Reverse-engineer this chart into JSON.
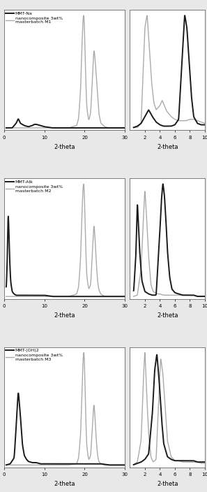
{
  "panels": [
    {
      "clay_label": "MMT-Na",
      "nano_label": "nanocomposite 3wt%\nmasterbatch M1",
      "clay_color": "#1a1a1a",
      "nano_color": "#aaaaaa",
      "clay_lw": 1.4,
      "nano_lw": 1.0,
      "clay_wide": {
        "x": [
          0.5,
          1.0,
          2.0,
          3.0,
          3.5,
          4.0,
          5.0,
          6.0,
          7.0,
          7.5,
          8.0,
          9.0,
          10.0,
          12.0,
          14.0,
          16.0,
          18.0,
          20.0,
          22.0,
          24.0,
          26.0,
          28.0,
          30.0
        ],
        "y": [
          0.02,
          0.02,
          0.02,
          0.06,
          0.1,
          0.06,
          0.04,
          0.03,
          0.04,
          0.05,
          0.05,
          0.04,
          0.03,
          0.02,
          0.02,
          0.02,
          0.02,
          0.02,
          0.02,
          0.02,
          0.02,
          0.02,
          0.02
        ]
      },
      "nano_wide": {
        "x": [
          0.5,
          2.0,
          4.0,
          6.0,
          8.0,
          10.0,
          12.0,
          14.0,
          16.0,
          18.0,
          18.5,
          19.0,
          19.3,
          19.6,
          19.8,
          20.0,
          20.2,
          20.5,
          21.0,
          21.5,
          22.0,
          22.3,
          22.6,
          22.9,
          23.2,
          23.5,
          24.0,
          25.0,
          26.0,
          27.0,
          28.0,
          29.0,
          30.0
        ],
        "y": [
          0.02,
          0.02,
          0.02,
          0.02,
          0.02,
          0.02,
          0.02,
          0.02,
          0.02,
          0.04,
          0.1,
          0.35,
          0.7,
          0.95,
          1.0,
          0.8,
          0.5,
          0.2,
          0.08,
          0.15,
          0.5,
          0.7,
          0.6,
          0.45,
          0.3,
          0.15,
          0.06,
          0.03,
          0.02,
          0.02,
          0.02,
          0.02,
          0.02
        ]
      },
      "clay_zoom": {
        "x": [
          0.5,
          1.0,
          1.5,
          2.0,
          2.5,
          3.0,
          3.5,
          4.0,
          4.5,
          5.0,
          5.5,
          6.0,
          6.5,
          7.0,
          7.3,
          7.6,
          7.9,
          8.2,
          8.5,
          9.0,
          9.5,
          10.0
        ],
        "y": [
          0.02,
          0.03,
          0.05,
          0.1,
          0.15,
          0.1,
          0.06,
          0.04,
          0.03,
          0.03,
          0.03,
          0.04,
          0.08,
          0.55,
          0.85,
          0.75,
          0.5,
          0.25,
          0.1,
          0.05,
          0.04,
          0.04
        ]
      },
      "nano_zoom": {
        "x": [
          0.5,
          1.0,
          1.5,
          2.0,
          2.3,
          2.6,
          2.9,
          3.2,
          3.5,
          4.0,
          4.3,
          4.6,
          4.9,
          5.2,
          5.5,
          6.0,
          6.5,
          7.0,
          7.5,
          8.0,
          8.5,
          9.0,
          9.5,
          10.0
        ],
        "y": [
          0.02,
          0.02,
          0.05,
          0.75,
          0.85,
          0.6,
          0.35,
          0.2,
          0.15,
          0.18,
          0.22,
          0.18,
          0.14,
          0.12,
          0.1,
          0.08,
          0.07,
          0.07,
          0.07,
          0.08,
          0.08,
          0.07,
          0.06,
          0.05
        ]
      }
    },
    {
      "clay_label": "MMT-Alk",
      "nano_label": "nanocomposite 3wt%\nmasterbatch M2",
      "clay_color": "#1a1a1a",
      "nano_color": "#aaaaaa",
      "clay_lw": 1.4,
      "nano_lw": 1.0,
      "clay_wide": {
        "x": [
          0.5,
          0.8,
          1.0,
          1.3,
          1.6,
          2.0,
          2.5,
          3.0,
          4.0,
          5.0,
          6.0,
          7.0,
          8.0,
          9.0,
          10.0,
          12.0,
          14.0,
          16.0,
          18.0,
          20.0,
          22.0,
          24.0,
          26.0,
          28.0,
          30.0
        ],
        "y": [
          0.05,
          0.35,
          0.8,
          0.4,
          0.15,
          0.06,
          0.04,
          0.03,
          0.03,
          0.03,
          0.03,
          0.03,
          0.03,
          0.03,
          0.03,
          0.02,
          0.02,
          0.02,
          0.02,
          0.02,
          0.02,
          0.02,
          0.02,
          0.02,
          0.02
        ]
      },
      "nano_wide": {
        "x": [
          0.5,
          2.0,
          4.0,
          6.0,
          8.0,
          10.0,
          12.0,
          14.0,
          16.0,
          18.0,
          18.5,
          19.0,
          19.3,
          19.6,
          19.8,
          20.0,
          20.2,
          20.5,
          21.0,
          21.5,
          22.0,
          22.3,
          22.6,
          22.9,
          23.2,
          23.5,
          24.0,
          25.0,
          26.0,
          27.0,
          28.0,
          29.0,
          30.0
        ],
        "y": [
          0.02,
          0.02,
          0.02,
          0.02,
          0.02,
          0.02,
          0.02,
          0.02,
          0.02,
          0.04,
          0.1,
          0.35,
          0.7,
          0.95,
          1.0,
          0.8,
          0.5,
          0.2,
          0.08,
          0.12,
          0.45,
          0.65,
          0.5,
          0.3,
          0.15,
          0.08,
          0.04,
          0.02,
          0.02,
          0.02,
          0.02,
          0.02,
          0.02
        ]
      },
      "clay_zoom": {
        "x": [
          0.5,
          0.8,
          1.0,
          1.3,
          1.6,
          2.0,
          2.5,
          3.0,
          3.5,
          4.0,
          4.2,
          4.4,
          4.6,
          4.8,
          5.0,
          5.3,
          5.6,
          6.0,
          6.5,
          7.0,
          7.5,
          8.0,
          8.5,
          9.0,
          9.5,
          10.0
        ],
        "y": [
          0.05,
          0.35,
          0.8,
          0.4,
          0.15,
          0.06,
          0.04,
          0.03,
          0.03,
          0.55,
          0.8,
          0.95,
          0.85,
          0.65,
          0.4,
          0.18,
          0.08,
          0.05,
          0.04,
          0.03,
          0.03,
          0.03,
          0.03,
          0.02,
          0.02,
          0.02
        ]
      },
      "nano_zoom": {
        "x": [
          0.5,
          1.0,
          1.5,
          1.8,
          2.0,
          2.2,
          2.5,
          2.8,
          3.1,
          3.4,
          3.7,
          4.0,
          4.5,
          5.0,
          5.5,
          6.0,
          6.5,
          7.0,
          7.5,
          8.0,
          8.5,
          9.0,
          9.5,
          10.0
        ],
        "y": [
          0.02,
          0.03,
          0.25,
          0.65,
          0.9,
          0.7,
          0.35,
          0.12,
          0.06,
          0.05,
          0.04,
          0.04,
          0.03,
          0.03,
          0.03,
          0.03,
          0.03,
          0.03,
          0.03,
          0.03,
          0.03,
          0.02,
          0.02,
          0.02
        ]
      }
    },
    {
      "clay_label": "MMT-(OH)2",
      "nano_label": "nanocomposite 3wt%\nmasterbatch M3",
      "clay_color": "#1a1a1a",
      "nano_color": "#aaaaaa",
      "clay_lw": 1.4,
      "nano_lw": 1.0,
      "clay_wide": {
        "x": [
          0.5,
          1.5,
          2.5,
          3.0,
          3.5,
          4.0,
          4.5,
          5.0,
          5.5,
          6.0,
          7.0,
          8.0,
          9.0,
          10.0,
          12.0,
          14.0,
          16.0,
          18.0,
          20.0,
          22.0,
          24.0,
          26.0,
          28.0,
          30.0
        ],
        "y": [
          0.02,
          0.03,
          0.08,
          0.35,
          0.65,
          0.45,
          0.2,
          0.1,
          0.07,
          0.05,
          0.04,
          0.04,
          0.03,
          0.03,
          0.03,
          0.03,
          0.03,
          0.03,
          0.03,
          0.03,
          0.03,
          0.02,
          0.02,
          0.02
        ]
      },
      "nano_wide": {
        "x": [
          0.5,
          2.0,
          4.0,
          6.0,
          8.0,
          10.0,
          12.0,
          14.0,
          16.0,
          18.0,
          18.5,
          19.0,
          19.3,
          19.6,
          19.8,
          20.0,
          20.2,
          20.5,
          21.0,
          21.5,
          22.0,
          22.3,
          22.6,
          22.9,
          23.2,
          23.5,
          24.0,
          25.0,
          26.0,
          27.0,
          28.0,
          29.0,
          30.0
        ],
        "y": [
          0.02,
          0.02,
          0.02,
          0.02,
          0.02,
          0.02,
          0.02,
          0.02,
          0.02,
          0.03,
          0.08,
          0.28,
          0.6,
          0.9,
          1.0,
          0.82,
          0.5,
          0.18,
          0.06,
          0.1,
          0.4,
          0.55,
          0.4,
          0.22,
          0.1,
          0.05,
          0.03,
          0.02,
          0.02,
          0.02,
          0.02,
          0.02,
          0.02
        ]
      },
      "clay_zoom": {
        "x": [
          0.5,
          1.0,
          1.5,
          2.0,
          2.5,
          3.0,
          3.3,
          3.6,
          3.9,
          4.2,
          4.5,
          5.0,
          5.5,
          6.0,
          6.5,
          7.0,
          7.5,
          8.0,
          8.5,
          9.0,
          9.5,
          10.0
        ],
        "y": [
          0.02,
          0.03,
          0.04,
          0.06,
          0.1,
          0.4,
          0.72,
          0.85,
          0.65,
          0.38,
          0.18,
          0.08,
          0.06,
          0.05,
          0.05,
          0.05,
          0.05,
          0.05,
          0.05,
          0.04,
          0.04,
          0.04
        ]
      },
      "nano_zoom": {
        "x": [
          0.5,
          1.0,
          1.5,
          1.8,
          2.0,
          2.2,
          2.5,
          2.8,
          3.1,
          3.5,
          3.8,
          4.1,
          4.4,
          4.7,
          5.0,
          5.5,
          6.0,
          6.5,
          7.0,
          7.5,
          8.0,
          8.5,
          9.0,
          9.5,
          10.0
        ],
        "y": [
          0.02,
          0.04,
          0.2,
          0.65,
          0.88,
          0.6,
          0.25,
          0.08,
          0.04,
          0.06,
          0.45,
          0.82,
          0.7,
          0.45,
          0.2,
          0.08,
          0.05,
          0.05,
          0.04,
          0.04,
          0.04,
          0.04,
          0.04,
          0.03,
          0.03
        ]
      }
    }
  ],
  "xlabel": "2-theta",
  "bg_color": "#e8e8e8",
  "axes_bg": "#ffffff",
  "tick_fontsize": 5,
  "label_fontsize": 6,
  "legend_fontsize": 4.5
}
